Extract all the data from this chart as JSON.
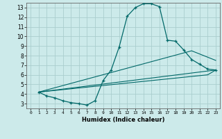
{
  "title": "",
  "xlabel": "Humidex (Indice chaleur)",
  "ylabel": "",
  "background_color": "#cceaea",
  "grid_color": "#aacece",
  "line_color": "#006868",
  "xlim": [
    -0.5,
    23.5
  ],
  "ylim": [
    2.5,
    13.5
  ],
  "xticks": [
    0,
    1,
    2,
    3,
    4,
    5,
    6,
    7,
    8,
    9,
    10,
    11,
    12,
    13,
    14,
    15,
    16,
    17,
    18,
    19,
    20,
    21,
    22,
    23
  ],
  "yticks": [
    3,
    4,
    5,
    6,
    7,
    8,
    9,
    10,
    11,
    12,
    13
  ],
  "line1_x": [
    1,
    2,
    3,
    4,
    5,
    6,
    7,
    8,
    9,
    10,
    11,
    12,
    13,
    14,
    15,
    16,
    17,
    18,
    19,
    20,
    21,
    22,
    23
  ],
  "line1_y": [
    4.2,
    3.8,
    3.6,
    3.3,
    3.1,
    3.0,
    2.85,
    3.3,
    5.4,
    6.5,
    8.9,
    12.1,
    13.0,
    13.4,
    13.4,
    13.1,
    9.6,
    9.5,
    8.6,
    7.6,
    7.1,
    6.6,
    6.5
  ],
  "line2_x": [
    1,
    23
  ],
  "line2_y": [
    4.2,
    6.5
  ],
  "line3_x": [
    1,
    20,
    23
  ],
  "line3_y": [
    4.2,
    8.5,
    7.5
  ],
  "line4_x": [
    1,
    22,
    23
  ],
  "line4_y": [
    4.2,
    6.0,
    6.5
  ]
}
